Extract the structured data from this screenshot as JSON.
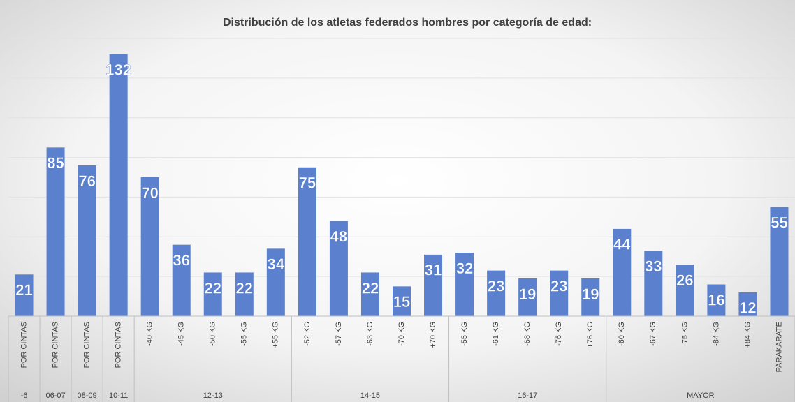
{
  "chart_data": {
    "type": "bar",
    "title": "Distribución de los atletas federados hombres por categoría de edad:",
    "categories": [
      "POR CINTAS",
      "POR CINTAS",
      "POR CINTAS",
      "POR CINTAS",
      "-40 KG",
      "-45 KG",
      "-50 KG",
      "-55 KG",
      "+55 KG",
      "-52 KG",
      "-57 KG",
      "-63 KG",
      "-70 KG",
      "+70 KG",
      "-55 KG",
      "-61 KG",
      "-68 KG",
      "-76 KG",
      "+76 KG",
      "-60 KG",
      "-67 KG",
      "-75 KG",
      "-84 KG",
      "+84 KG",
      "PARAKARATE"
    ],
    "groups": [
      {
        "label": "-6",
        "count": 1
      },
      {
        "label": "06-07",
        "count": 1
      },
      {
        "label": "08-09",
        "count": 1
      },
      {
        "label": "10-11",
        "count": 1
      },
      {
        "label": "12-13",
        "count": 5
      },
      {
        "label": "14-15",
        "count": 5
      },
      {
        "label": "16-17",
        "count": 5
      },
      {
        "label": "MAYOR",
        "count": 6
      }
    ],
    "values": [
      21,
      85,
      76,
      132,
      70,
      36,
      22,
      22,
      34,
      75,
      48,
      22,
      15,
      31,
      32,
      23,
      19,
      23,
      19,
      44,
      33,
      26,
      16,
      12,
      55
    ],
    "color": "#5b80cd",
    "ylim": [
      0,
      140
    ],
    "yticks": [
      0,
      20,
      40,
      60,
      80,
      100,
      120,
      140
    ],
    "grid": true
  }
}
